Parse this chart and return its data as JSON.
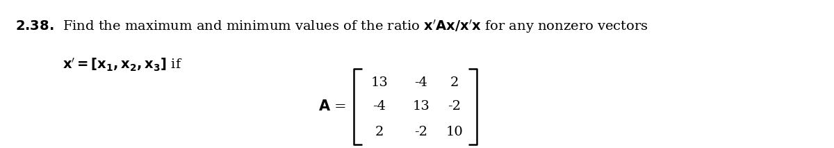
{
  "problem_number": "2.38.",
  "line1_text": "Find the maximum and minimum values of the ratio x’​A​x/x’​x for any nonzero vectors",
  "line2_text": "x’ = [x₁, x₂, x₃] if",
  "matrix_label": "A =",
  "matrix": [
    [
      "13",
      "-4",
      "2"
    ],
    [
      "-4",
      "13",
      "-2"
    ],
    [
      "2",
      "-2",
      "10"
    ]
  ],
  "background_color": "#ffffff",
  "text_color": "#000000",
  "font_size_main": 14
}
